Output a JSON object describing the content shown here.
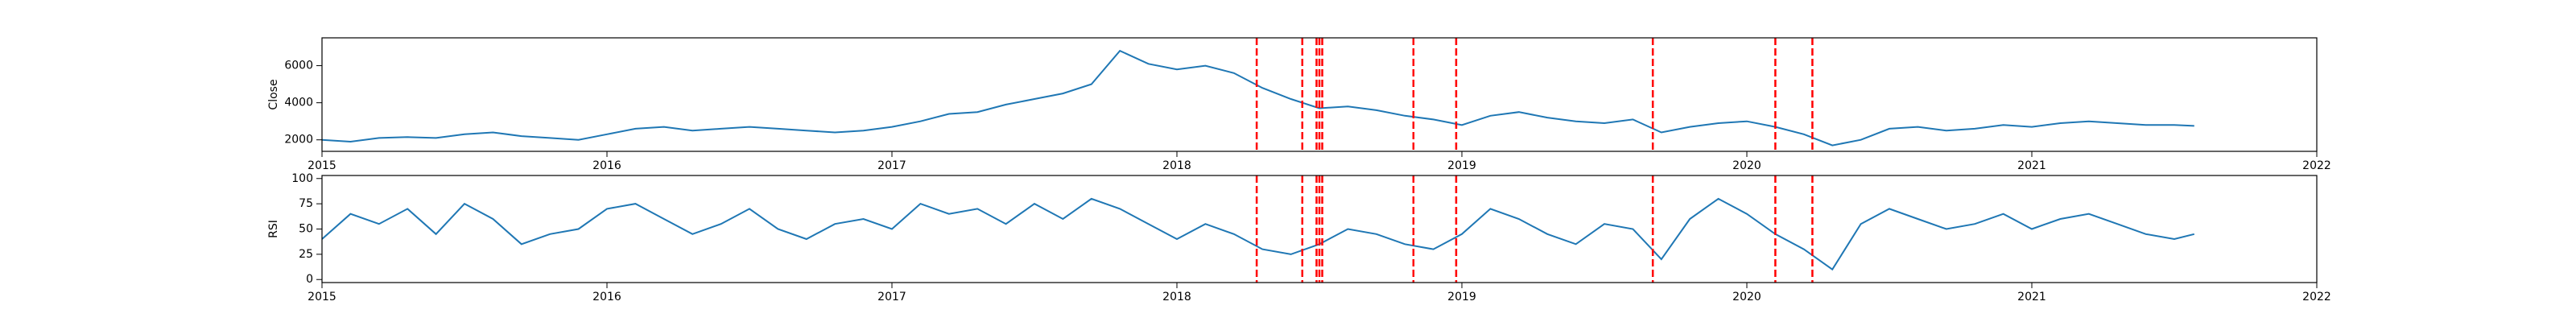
{
  "chart_data": [
    {
      "type": "line",
      "ylabel": "Close",
      "color": "#1f77b4",
      "x": [
        2015,
        2015.1,
        2015.2,
        2015.3,
        2015.4,
        2015.5,
        2015.6,
        2015.7,
        2015.8,
        2015.9,
        2016,
        2016.1,
        2016.2,
        2016.3,
        2016.4,
        2016.5,
        2016.6,
        2016.7,
        2016.8,
        2016.9,
        2017,
        2017.1,
        2017.2,
        2017.3,
        2017.4,
        2017.5,
        2017.6,
        2017.7,
        2017.8,
        2017.9,
        2018,
        2018.1,
        2018.2,
        2018.3,
        2018.4,
        2018.5,
        2018.6,
        2018.7,
        2018.8,
        2018.9,
        2019,
        2019.1,
        2019.2,
        2019.3,
        2019.4,
        2019.5,
        2019.6,
        2019.7,
        2019.8,
        2019.9,
        2020,
        2020.1,
        2020.2,
        2020.3,
        2020.4,
        2020.5,
        2020.6,
        2020.7,
        2020.8,
        2020.9,
        2021,
        2021.1,
        2021.2,
        2021.3,
        2021.4,
        2021.5,
        2021.57
      ],
      "values": [
        2000,
        1900,
        2100,
        2150,
        2100,
        2300,
        2400,
        2200,
        2100,
        2000,
        2300,
        2600,
        2700,
        2500,
        2600,
        2700,
        2600,
        2500,
        2400,
        2500,
        2700,
        3000,
        3400,
        3500,
        3900,
        4200,
        4500,
        5000,
        6800,
        6100,
        5800,
        6000,
        5600,
        4800,
        4200,
        3700,
        3800,
        3600,
        3300,
        3100,
        2800,
        3300,
        3500,
        3200,
        3000,
        2900,
        3100,
        2400,
        2700,
        2900,
        3000,
        2700,
        2300,
        1700,
        2000,
        2600,
        2700,
        2500,
        2600,
        2800,
        2700,
        2900,
        3000,
        2900,
        2800,
        2800,
        2750
      ],
      "vlines": [
        2018.28,
        2018.44,
        2018.49,
        2018.5,
        2018.51,
        2018.83,
        2018.98,
        2019.67,
        2020.1,
        2020.23
      ],
      "vline_color": "#ff0000",
      "xlim": [
        2015,
        2022
      ],
      "xticks": [
        2015,
        2016,
        2017,
        2018,
        2019,
        2020,
        2021,
        2022
      ],
      "ylim": [
        1380,
        7500
      ],
      "yticks": [
        2000,
        4000,
        6000
      ]
    },
    {
      "type": "line",
      "ylabel": "RSI",
      "color": "#1f77b4",
      "x": [
        2015,
        2015.1,
        2015.2,
        2015.3,
        2015.4,
        2015.5,
        2015.6,
        2015.7,
        2015.8,
        2015.9,
        2016,
        2016.1,
        2016.2,
        2016.3,
        2016.4,
        2016.5,
        2016.6,
        2016.7,
        2016.8,
        2016.9,
        2017,
        2017.1,
        2017.2,
        2017.3,
        2017.4,
        2017.5,
        2017.6,
        2017.7,
        2017.8,
        2017.9,
        2018,
        2018.1,
        2018.2,
        2018.3,
        2018.4,
        2018.5,
        2018.6,
        2018.7,
        2018.8,
        2018.9,
        2019,
        2019.1,
        2019.2,
        2019.3,
        2019.4,
        2019.5,
        2019.6,
        2019.7,
        2019.8,
        2019.9,
        2020,
        2020.1,
        2020.2,
        2020.3,
        2020.4,
        2020.5,
        2020.6,
        2020.7,
        2020.8,
        2020.9,
        2021,
        2021.1,
        2021.2,
        2021.3,
        2021.4,
        2021.5,
        2021.57
      ],
      "values": [
        40,
        65,
        55,
        70,
        45,
        75,
        60,
        35,
        45,
        50,
        70,
        75,
        60,
        45,
        55,
        70,
        50,
        40,
        55,
        60,
        50,
        75,
        65,
        70,
        55,
        75,
        60,
        80,
        70,
        55,
        40,
        55,
        45,
        30,
        25,
        35,
        50,
        45,
        35,
        30,
        45,
        70,
        60,
        45,
        35,
        55,
        50,
        20,
        60,
        80,
        65,
        45,
        30,
        10,
        55,
        70,
        60,
        50,
        55,
        65,
        50,
        60,
        65,
        55,
        45,
        40,
        45
      ],
      "vlines": [
        2018.28,
        2018.44,
        2018.49,
        2018.5,
        2018.51,
        2018.83,
        2018.98,
        2019.67,
        2020.1,
        2020.23
      ],
      "vline_color": "#ff0000",
      "xlim": [
        2015,
        2022
      ],
      "xticks": [
        2015,
        2016,
        2017,
        2018,
        2019,
        2020,
        2021,
        2022
      ],
      "ylim": [
        -3,
        103
      ],
      "yticks": [
        0,
        25,
        50,
        75,
        100
      ]
    }
  ]
}
